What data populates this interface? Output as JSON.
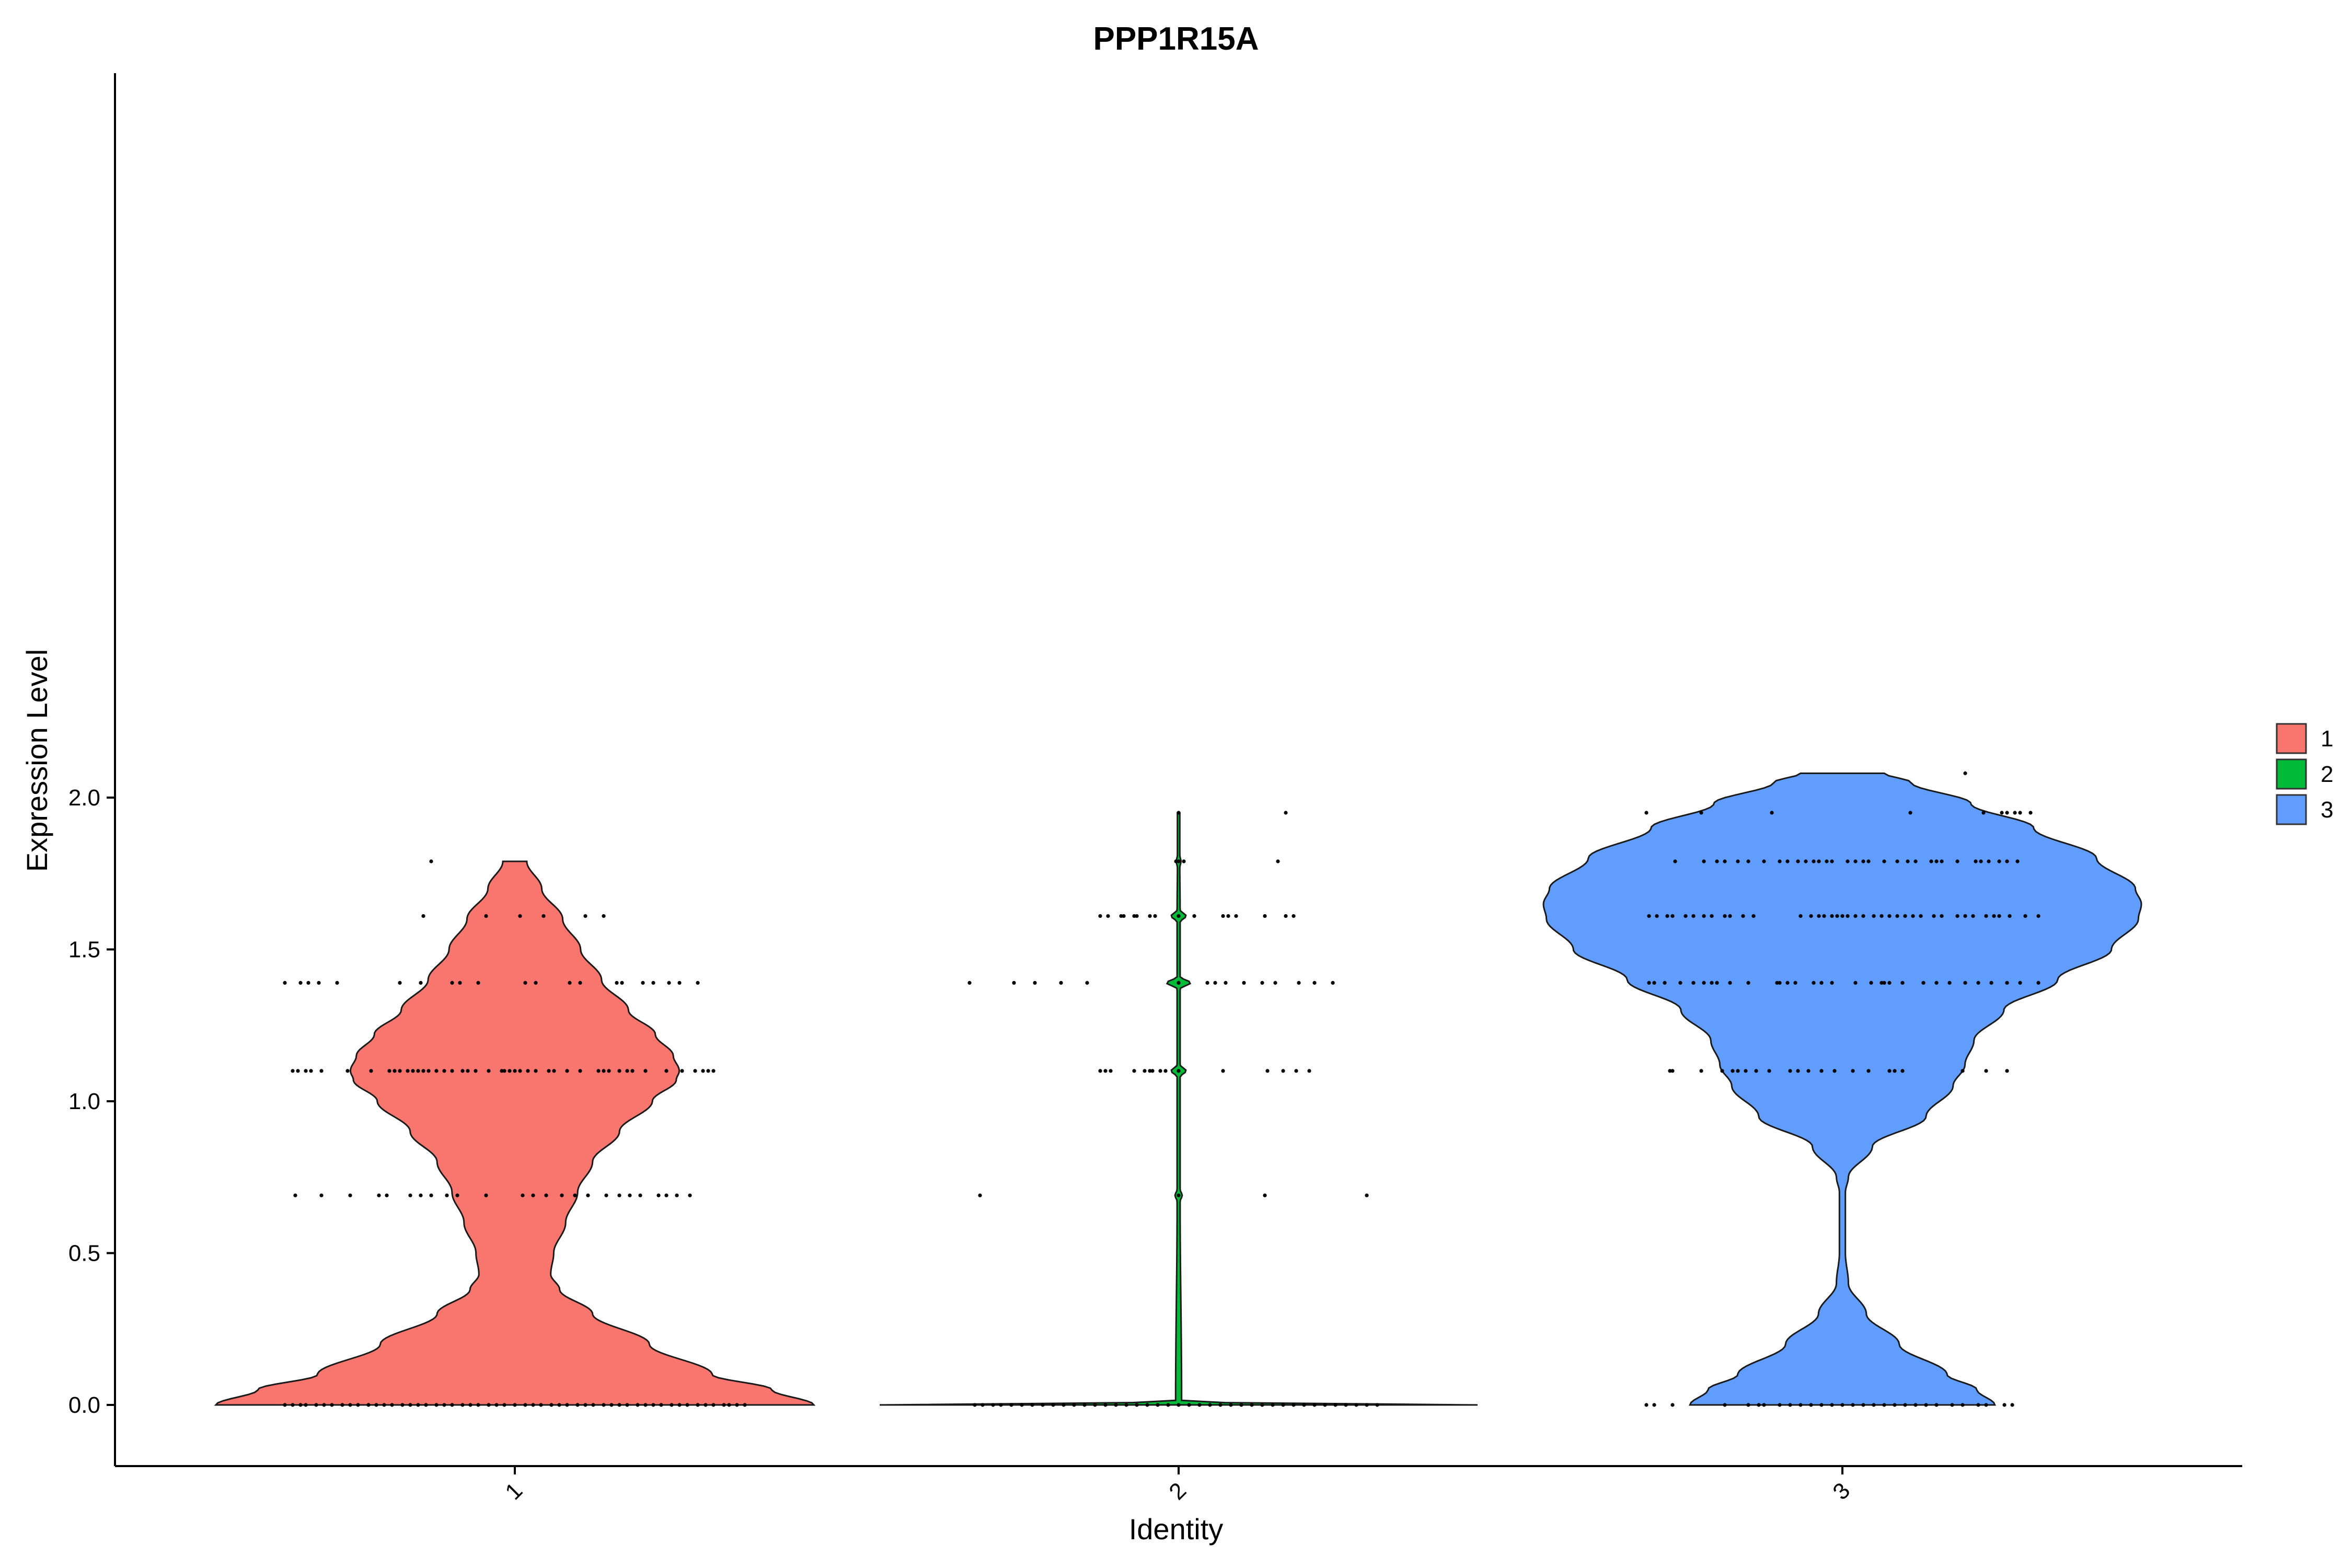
{
  "chart_data": {
    "type": "violin",
    "title": "PPP1R15A",
    "xlabel": "Identity",
    "ylabel": "Expression Level",
    "categories": [
      "1",
      "2",
      "3"
    ],
    "ylim": [
      -0.1,
      2.18
    ],
    "yticks": [
      "0.0",
      "0.5",
      "1.0",
      "1.5",
      "2.0"
    ],
    "ytick_values": [
      0.0,
      0.5,
      1.0,
      1.5,
      2.0
    ],
    "grid": false,
    "legend_position": "right",
    "legend": [
      {
        "label": "1",
        "color": "#F8766D"
      },
      {
        "label": "2",
        "color": "#00BA38"
      },
      {
        "label": "3",
        "color": "#619CFF"
      }
    ],
    "series": [
      {
        "name": "1",
        "color": "#F8766D",
        "y_min": 0.0,
        "y_max": 1.79,
        "density": [
          [
            0.0,
            1.0
          ],
          [
            0.05,
            0.86
          ],
          [
            0.1,
            0.66
          ],
          [
            0.2,
            0.45
          ],
          [
            0.3,
            0.26
          ],
          [
            0.38,
            0.15
          ],
          [
            0.43,
            0.12
          ],
          [
            0.5,
            0.13
          ],
          [
            0.6,
            0.17
          ],
          [
            0.7,
            0.21
          ],
          [
            0.8,
            0.26
          ],
          [
            0.9,
            0.35
          ],
          [
            1.0,
            0.46
          ],
          [
            1.07,
            0.54
          ],
          [
            1.1,
            0.55
          ],
          [
            1.15,
            0.53
          ],
          [
            1.22,
            0.47
          ],
          [
            1.3,
            0.38
          ],
          [
            1.4,
            0.29
          ],
          [
            1.5,
            0.22
          ],
          [
            1.6,
            0.16
          ],
          [
            1.7,
            0.09
          ],
          [
            1.79,
            0.04
          ]
        ],
        "dot_levels": [
          {
            "y": 0.0,
            "x": [
              -0.88,
              -0.85,
              -0.82,
              -0.8,
              -0.76,
              -0.73,
              -0.7,
              -0.66,
              -0.63,
              -0.6,
              -0.56,
              -0.53,
              -0.5,
              -0.47,
              -0.43,
              -0.4,
              -0.37,
              -0.34,
              -0.3,
              -0.27,
              -0.24,
              -0.2,
              -0.17,
              -0.14,
              -0.1,
              -0.07,
              -0.04,
              0.0,
              0.04,
              0.07,
              0.1,
              0.14,
              0.17,
              0.2,
              0.24,
              0.27,
              0.3,
              0.34,
              0.37,
              0.4,
              0.43,
              0.47,
              0.5,
              0.53,
              0.56,
              0.6,
              0.63,
              0.66,
              0.7,
              0.73,
              0.76,
              0.8,
              0.82,
              0.85,
              0.88
            ]
          },
          {
            "y": 0.69,
            "x": [
              -0.84,
              -0.74,
              -0.63,
              -0.52,
              -0.49,
              -0.4,
              -0.36,
              -0.32,
              -0.26,
              -0.22,
              -0.11,
              0.03,
              0.07,
              0.12,
              0.18,
              0.23,
              0.28,
              0.35,
              0.4,
              0.44,
              0.48,
              0.55,
              0.58,
              0.62,
              0.67
            ]
          },
          {
            "y": 1.1,
            "x": [
              -0.85,
              -0.83,
              -0.8,
              -0.78,
              -0.74,
              -0.64,
              -0.55,
              -0.48,
              -0.46,
              -0.44,
              -0.41,
              -0.39,
              -0.37,
              -0.35,
              -0.33,
              -0.3,
              -0.27,
              -0.24,
              -0.2,
              -0.18,
              -0.15,
              -0.1,
              -0.05,
              -0.04,
              -0.02,
              0.0,
              0.02,
              0.05,
              0.08,
              0.13,
              0.15,
              0.2,
              0.25,
              0.32,
              0.34,
              0.36,
              0.4,
              0.43,
              0.45,
              0.5,
              0.58,
              0.64,
              0.69,
              0.72,
              0.74,
              0.76
            ]
          },
          {
            "y": 1.39,
            "x": [
              -0.88,
              -0.82,
              -0.79,
              -0.75,
              -0.68,
              -0.44,
              -0.36,
              -0.24,
              -0.21,
              -0.14,
              0.04,
              0.08,
              0.21,
              0.25,
              0.39,
              0.41,
              0.49,
              0.53,
              0.59,
              0.63,
              0.7
            ]
          },
          {
            "y": 1.61,
            "x": [
              -0.35,
              -0.11,
              0.02,
              0.11,
              0.27,
              0.34
            ]
          },
          {
            "y": 1.79,
            "x": [
              -0.32
            ]
          }
        ]
      },
      {
        "name": "2",
        "color": "#00BA38",
        "y_min": 0.0,
        "y_max": 1.95,
        "density": [
          [
            0.0,
            1.0
          ],
          [
            0.01,
            0.01
          ],
          [
            0.67,
            0.005
          ],
          [
            0.69,
            0.012
          ],
          [
            0.71,
            0.005
          ],
          [
            1.08,
            0.005
          ],
          [
            1.1,
            0.025
          ],
          [
            1.12,
            0.005
          ],
          [
            1.37,
            0.005
          ],
          [
            1.39,
            0.04
          ],
          [
            1.41,
            0.005
          ],
          [
            1.59,
            0.005
          ],
          [
            1.61,
            0.025
          ],
          [
            1.63,
            0.005
          ],
          [
            1.77,
            0.004
          ],
          [
            1.79,
            0.008
          ],
          [
            1.81,
            0.004
          ],
          [
            1.95,
            0.004
          ]
        ],
        "dot_levels": [
          {
            "y": 0.0,
            "x": [
              -0.78,
              -0.75,
              -0.71,
              -0.68,
              -0.64,
              -0.6,
              -0.56,
              -0.52,
              -0.48,
              -0.44,
              -0.4,
              -0.36,
              -0.32,
              -0.28,
              -0.24,
              -0.2,
              -0.16,
              -0.12,
              -0.08,
              -0.04,
              0.0,
              0.04,
              0.08,
              0.12,
              0.16,
              0.2,
              0.24,
              0.28,
              0.32,
              0.36,
              0.4,
              0.44,
              0.48,
              0.52,
              0.56,
              0.6,
              0.64,
              0.68,
              0.72,
              0.76
            ]
          },
          {
            "y": 0.69,
            "x": [
              -0.76,
              0.0,
              0.33,
              0.72
            ]
          },
          {
            "y": 1.1,
            "x": [
              -0.3,
              -0.28,
              -0.26,
              -0.17,
              -0.13,
              -0.11,
              -0.1,
              -0.07,
              -0.05,
              0.0,
              0.17,
              0.34,
              0.4,
              0.45,
              0.5
            ]
          },
          {
            "y": 1.39,
            "x": [
              -0.8,
              -0.63,
              -0.55,
              -0.45,
              -0.35,
              0.0,
              0.11,
              0.14,
              0.18,
              0.25,
              0.32,
              0.37,
              0.46,
              0.52,
              0.59
            ]
          },
          {
            "y": 1.61,
            "x": [
              -0.3,
              -0.27,
              -0.22,
              -0.21,
              -0.17,
              -0.16,
              -0.11,
              -0.09,
              0.0,
              0.06,
              0.17,
              0.19,
              0.22,
              0.33,
              0.41,
              0.44
            ]
          },
          {
            "y": 1.79,
            "x": [
              -0.01,
              0.0,
              0.02,
              0.38
            ]
          },
          {
            "y": 1.95,
            "x": [
              0.0,
              0.41
            ]
          }
        ]
      },
      {
        "name": "3",
        "color": "#619CFF",
        "y_min": 0.0,
        "y_max": 2.08,
        "density": [
          [
            0.0,
            0.51
          ],
          [
            0.05,
            0.45
          ],
          [
            0.1,
            0.35
          ],
          [
            0.2,
            0.19
          ],
          [
            0.3,
            0.08
          ],
          [
            0.4,
            0.02
          ],
          [
            0.5,
            0.01
          ],
          [
            0.6,
            0.01
          ],
          [
            0.7,
            0.01
          ],
          [
            0.75,
            0.02
          ],
          [
            0.85,
            0.1
          ],
          [
            0.95,
            0.28
          ],
          [
            1.05,
            0.37
          ],
          [
            1.12,
            0.41
          ],
          [
            1.2,
            0.44
          ],
          [
            1.3,
            0.54
          ],
          [
            1.4,
            0.72
          ],
          [
            1.5,
            0.9
          ],
          [
            1.6,
            0.99
          ],
          [
            1.65,
            1.0
          ],
          [
            1.7,
            0.98
          ],
          [
            1.8,
            0.85
          ],
          [
            1.9,
            0.64
          ],
          [
            1.98,
            0.43
          ],
          [
            2.05,
            0.23
          ],
          [
            2.08,
            0.14
          ]
        ],
        "dot_levels": [
          {
            "y": 0.0,
            "x": [
              -0.75,
              -0.72,
              -0.65,
              -0.45,
              -0.36,
              -0.32,
              -0.3,
              -0.24,
              -0.2,
              -0.16,
              -0.12,
              -0.08,
              -0.04,
              0.0,
              0.04,
              0.08,
              0.12,
              0.16,
              0.2,
              0.24,
              0.28,
              0.32,
              0.36,
              0.42,
              0.46,
              0.52,
              0.55,
              0.62,
              0.65
            ]
          },
          {
            "y": 1.1,
            "x": [
              -0.66,
              -0.65,
              -0.54,
              -0.46,
              -0.42,
              -0.4,
              -0.37,
              -0.33,
              -0.28,
              -0.2,
              -0.17,
              -0.13,
              -0.08,
              -0.03,
              0.04,
              0.1,
              0.18,
              0.2,
              0.23,
              0.46,
              0.55,
              0.63
            ]
          },
          {
            "y": 1.39,
            "x": [
              -0.74,
              -0.72,
              -0.68,
              -0.62,
              -0.57,
              -0.53,
              -0.5,
              -0.48,
              -0.43,
              -0.36,
              -0.25,
              -0.24,
              -0.21,
              -0.18,
              -0.11,
              -0.08,
              -0.04,
              0.05,
              0.11,
              0.15,
              0.16,
              0.18,
              0.23,
              0.31,
              0.36,
              0.41,
              0.47,
              0.52,
              0.57,
              0.63,
              0.68,
              0.75
            ]
          },
          {
            "y": 1.61,
            "x": [
              -0.74,
              -0.71,
              -0.67,
              -0.65,
              -0.6,
              -0.57,
              -0.53,
              -0.5,
              -0.45,
              -0.43,
              -0.38,
              -0.34,
              -0.16,
              -0.12,
              -0.09,
              -0.07,
              -0.04,
              -0.02,
              0.0,
              0.02,
              0.05,
              0.08,
              0.12,
              0.15,
              0.18,
              0.21,
              0.24,
              0.27,
              0.3,
              0.35,
              0.38,
              0.44,
              0.47,
              0.5,
              0.55,
              0.58,
              0.6,
              0.64,
              0.7,
              0.75
            ]
          },
          {
            "y": 1.79,
            "x": [
              -0.64,
              -0.53,
              -0.48,
              -0.45,
              -0.4,
              -0.36,
              -0.3,
              -0.24,
              -0.21,
              -0.17,
              -0.14,
              -0.11,
              -0.09,
              -0.06,
              -0.04,
              0.02,
              0.05,
              0.08,
              0.1,
              0.16,
              0.21,
              0.25,
              0.28,
              0.34,
              0.36,
              0.38,
              0.44,
              0.51,
              0.53,
              0.56,
              0.6,
              0.63,
              0.67
            ]
          },
          {
            "y": 1.95,
            "x": [
              -0.75,
              -0.54,
              -0.27,
              0.26,
              0.54,
              0.61,
              0.63,
              0.66,
              0.68,
              0.72
            ]
          },
          {
            "y": 2.08,
            "x": [
              0.47
            ]
          }
        ]
      }
    ]
  }
}
